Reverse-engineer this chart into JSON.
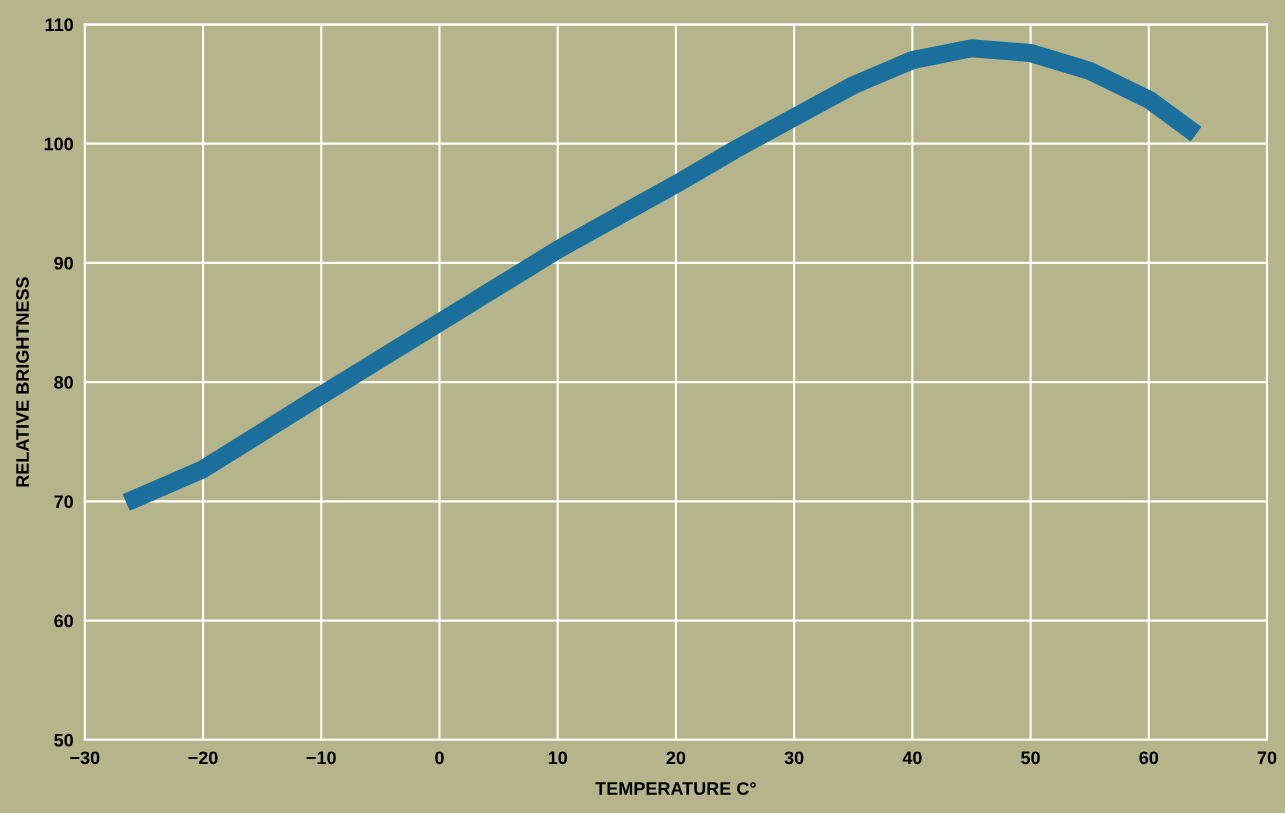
{
  "chart_data": {
    "type": "line",
    "xlabel": "TEMPERATURE C°",
    "ylabel": "RELATIVE BRIGHTNESS",
    "x": [
      -26.5,
      -20,
      -10,
      0,
      10,
      20,
      25,
      30,
      35,
      40,
      45,
      50,
      55,
      60,
      64
    ],
    "series": [
      {
        "color": "#1b6f9c",
        "values": [
          69.9,
          72.7,
          78.9,
          85.0,
          91.1,
          96.6,
          99.5,
          102.2,
          104.9,
          107.0,
          108.0,
          107.6,
          106.1,
          103.7,
          100.8
        ]
      }
    ],
    "xlim": [
      -30,
      70
    ],
    "ylim": [
      50,
      110
    ],
    "xticks": [
      {
        "value": -30,
        "label": "−30"
      },
      {
        "value": -20,
        "label": "−20"
      },
      {
        "value": -10,
        "label": "−10"
      },
      0,
      10,
      20,
      30,
      40,
      50,
      60,
      70
    ],
    "yticks": [
      50,
      60,
      70,
      80,
      90,
      100,
      110
    ],
    "grid": true,
    "marker": "none",
    "line_style": "solid"
  }
}
